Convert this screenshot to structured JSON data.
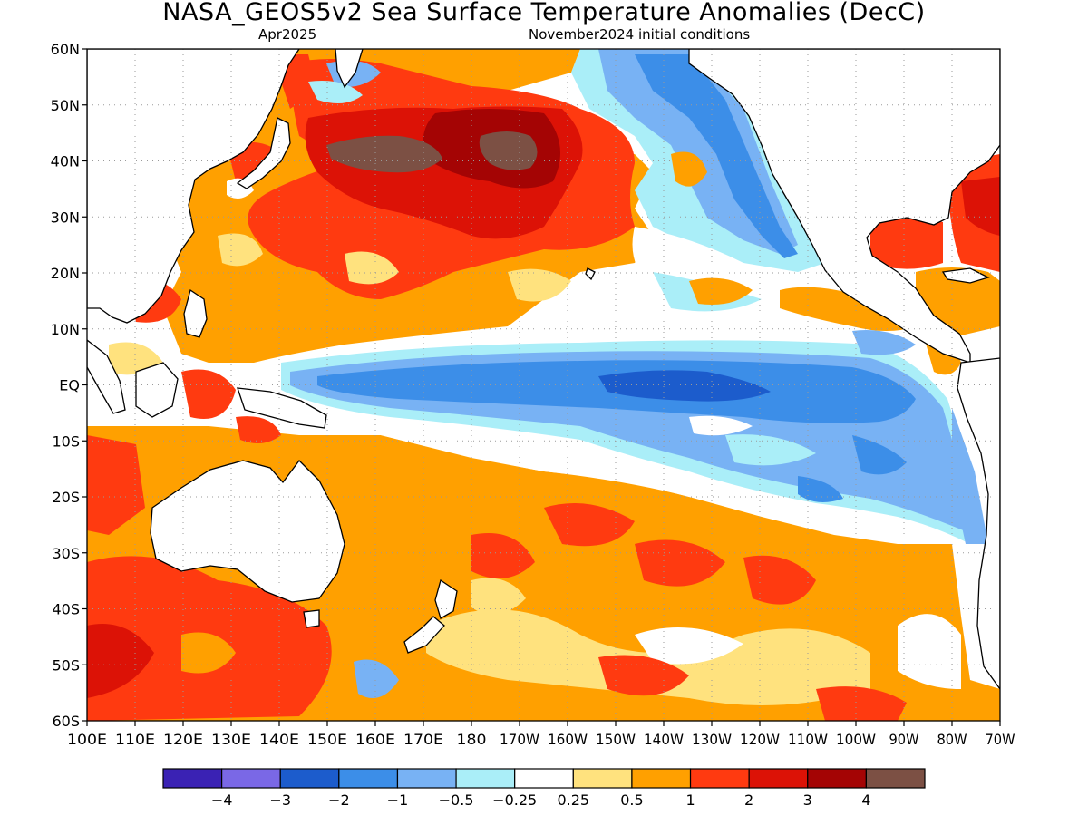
{
  "title": "NASA_GEOS5v2 Sea Surface Temperature Anomalies (DecC)",
  "subtitle_left": "Apr2025",
  "subtitle_right": "November2024 initial conditions",
  "lat_labels": [
    "60N",
    "50N",
    "40N",
    "30N",
    "20N",
    "10N",
    "EQ",
    "10S",
    "20S",
    "30S",
    "40S",
    "50S",
    "60S"
  ],
  "lon_labels": [
    "100E",
    "110E",
    "120E",
    "130E",
    "140E",
    "150E",
    "160E",
    "170E",
    "180",
    "170W",
    "160W",
    "150W",
    "140W",
    "130W",
    "120W",
    "110W",
    "100W",
    "90W",
    "80W",
    "70W"
  ],
  "colorbar": {
    "colors": [
      "#3a22b4",
      "#7a68e6",
      "#1c5ccc",
      "#3c8ee8",
      "#78b2f4",
      "#aaeef8",
      "#ffffff",
      "#ffe27e",
      "#ffa000",
      "#ff3a10",
      "#dc1206",
      "#a40404",
      "#7c5044"
    ],
    "labels": [
      "−4",
      "−3",
      "−2",
      "−1",
      "−0.5",
      "−0.25",
      "0.25",
      "0.5",
      "1",
      "2",
      "3",
      "4"
    ]
  }
}
